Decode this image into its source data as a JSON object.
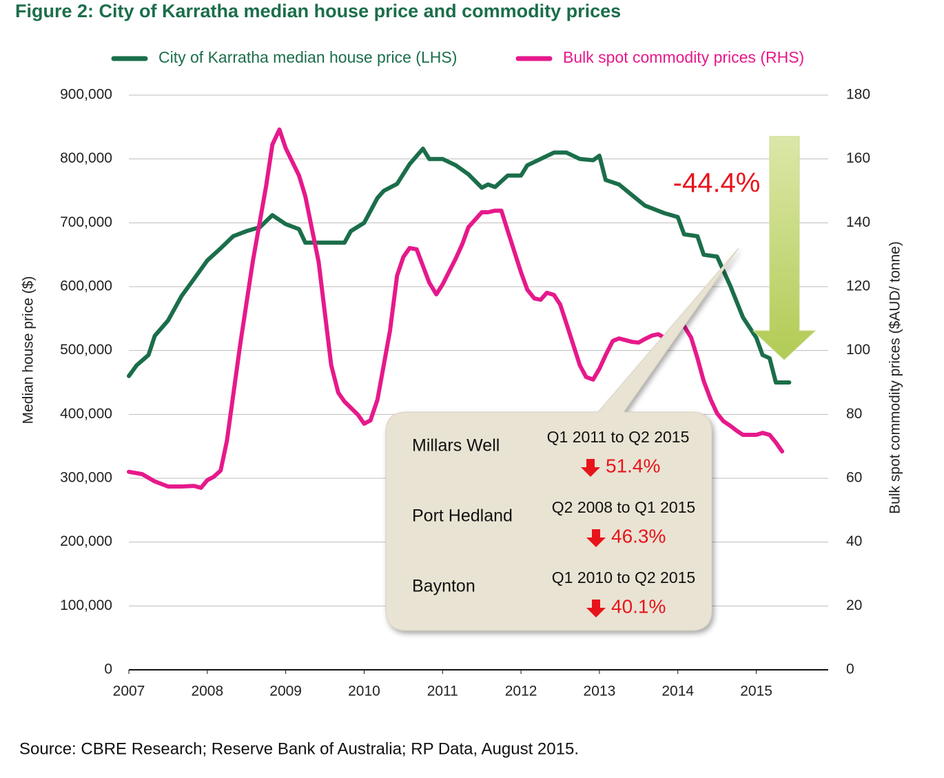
{
  "chart_data": {
    "type": "line",
    "title": "Figure 2: City of Karratha median house price and commodity prices",
    "ylabel": "Median house price ($)",
    "y2label": "Bulk spot commodity prices ($AUD/ tonne)",
    "source": "Source: CBRE Research; Reserve Bank of Australia; RP Data, August 2015.",
    "xlim": [
      2007,
      2015.9
    ],
    "xticks": [
      2007,
      2008,
      2009,
      2010,
      2011,
      2012,
      2013,
      2014,
      2015
    ],
    "ylim": [
      0,
      900000
    ],
    "yticks": [
      0,
      {
        "value": 100000,
        "label": "100,000"
      },
      {
        "value": 200000,
        "label": "200,000"
      },
      {
        "value": 300000,
        "label": "300,000"
      },
      {
        "value": 400000,
        "label": "400,000"
      },
      {
        "value": 500000,
        "label": "500,000"
      },
      {
        "value": 600000,
        "label": "600,000"
      },
      {
        "value": 700000,
        "label": "700,000"
      },
      {
        "value": 800000,
        "label": "800,000"
      },
      {
        "value": 900000,
        "label": "900,000"
      }
    ],
    "y2lim": [
      0,
      180
    ],
    "y2ticks": [
      0,
      20,
      40,
      60,
      80,
      100,
      120,
      140,
      160,
      180
    ],
    "grid": true,
    "legend": "top",
    "series": [
      {
        "name": "City of Karratha median house price (LHS)",
        "color": "#1b6e4a",
        "x": [
          2007.0,
          2007.1,
          2007.25,
          2007.33,
          2007.5,
          2007.67,
          2007.83,
          2008.0,
          2008.17,
          2008.33,
          2008.5,
          2008.67,
          2008.83,
          2009.0,
          2009.17,
          2009.25,
          2009.5,
          2009.75,
          2009.83,
          2010.0,
          2010.17,
          2010.25,
          2010.42,
          2010.58,
          2010.75,
          2010.83,
          2011.0,
          2011.17,
          2011.33,
          2011.5,
          2011.58,
          2011.67,
          2011.83,
          2012.0,
          2012.08,
          2012.25,
          2012.42,
          2012.58,
          2012.75,
          2012.92,
          2013.0,
          2013.08,
          2013.25,
          2013.42,
          2013.58,
          2013.83,
          2014.0,
          2014.08,
          2014.25,
          2014.33,
          2014.5,
          2014.67,
          2014.83,
          2015.0,
          2015.08,
          2015.17,
          2015.25,
          2015.42
        ],
        "values": [
          460000,
          477000,
          493000,
          523000,
          547000,
          585000,
          612000,
          641000,
          660000,
          679000,
          687000,
          693000,
          712000,
          698000,
          690000,
          669000,
          669000,
          669000,
          687000,
          700000,
          739000,
          750000,
          761000,
          792000,
          816000,
          800000,
          800000,
          790000,
          776000,
          755000,
          760000,
          756000,
          774000,
          774000,
          790000,
          800000,
          810000,
          810000,
          800000,
          798000,
          805000,
          767000,
          760000,
          743000,
          727000,
          715000,
          709000,
          682000,
          679000,
          650000,
          647000,
          601000,
          552000,
          520000,
          493000,
          488000,
          450000,
          450000
        ]
      },
      {
        "name": "Bulk spot commodity prices (RHS)",
        "color": "#e6198b",
        "axis": "y2",
        "x": [
          2007.0,
          2007.17,
          2007.33,
          2007.5,
          2007.67,
          2007.83,
          2007.92,
          2008.0,
          2008.08,
          2008.17,
          2008.25,
          2008.42,
          2008.58,
          2008.75,
          2008.83,
          2008.92,
          2009.0,
          2009.17,
          2009.25,
          2009.42,
          2009.58,
          2009.67,
          2009.75,
          2009.92,
          2010.0,
          2010.08,
          2010.17,
          2010.33,
          2010.42,
          2010.5,
          2010.58,
          2010.67,
          2010.83,
          2010.92,
          2011.0,
          2011.17,
          2011.25,
          2011.33,
          2011.5,
          2011.58,
          2011.67,
          2011.75,
          2011.83,
          2012.0,
          2012.08,
          2012.17,
          2012.25,
          2012.33,
          2012.42,
          2012.5,
          2012.58,
          2012.75,
          2012.83,
          2012.92,
          2013.0,
          2013.08,
          2013.17,
          2013.25,
          2013.42,
          2013.5,
          2013.58,
          2013.67,
          2013.75,
          2013.83,
          2013.92,
          2014.0,
          2014.08,
          2014.17,
          2014.25,
          2014.33,
          2014.42,
          2014.5,
          2014.58,
          2014.67,
          2014.75,
          2014.83,
          2015.0,
          2015.08,
          2015.17,
          2015.25,
          2015.33
        ],
        "values": [
          62,
          61.3,
          59,
          57.4,
          57.4,
          57.6,
          57,
          59.4,
          60.4,
          62.4,
          71.7,
          101.9,
          127.8,
          151.5,
          164.5,
          169.2,
          163.4,
          154.8,
          148.3,
          127.8,
          95.4,
          86.8,
          84,
          79.9,
          77.1,
          78.1,
          84.6,
          106.2,
          123.5,
          129.3,
          132.1,
          131.7,
          121.3,
          117.6,
          120.7,
          128.9,
          133.2,
          138.6,
          143.3,
          143.3,
          143.8,
          143.8,
          137.5,
          124.5,
          119.1,
          116.3,
          115.9,
          118.1,
          117.4,
          114.4,
          108.4,
          95.4,
          91.7,
          90.9,
          94.3,
          98.6,
          103,
          103.8,
          102.7,
          102.5,
          103.6,
          104.7,
          105.1,
          104,
          105.5,
          107.9,
          107.7,
          104,
          97.6,
          90.4,
          84.6,
          80.3,
          77.9,
          76.4,
          74.9,
          73.6,
          73.6,
          74.2,
          73.6,
          71.2,
          68.4
        ]
      }
    ],
    "annotation": "-44.4%",
    "callout": [
      {
        "name": "Millars Well",
        "period": "Q1 2011 to Q2 2015",
        "change": "51.4%"
      },
      {
        "name": "Port Hedland",
        "period": "Q2 2008 to Q1 2015",
        "change": "46.3%"
      },
      {
        "name": "Baynton",
        "period": "Q1 2010 to Q2 2015",
        "change": "40.1%"
      }
    ]
  }
}
